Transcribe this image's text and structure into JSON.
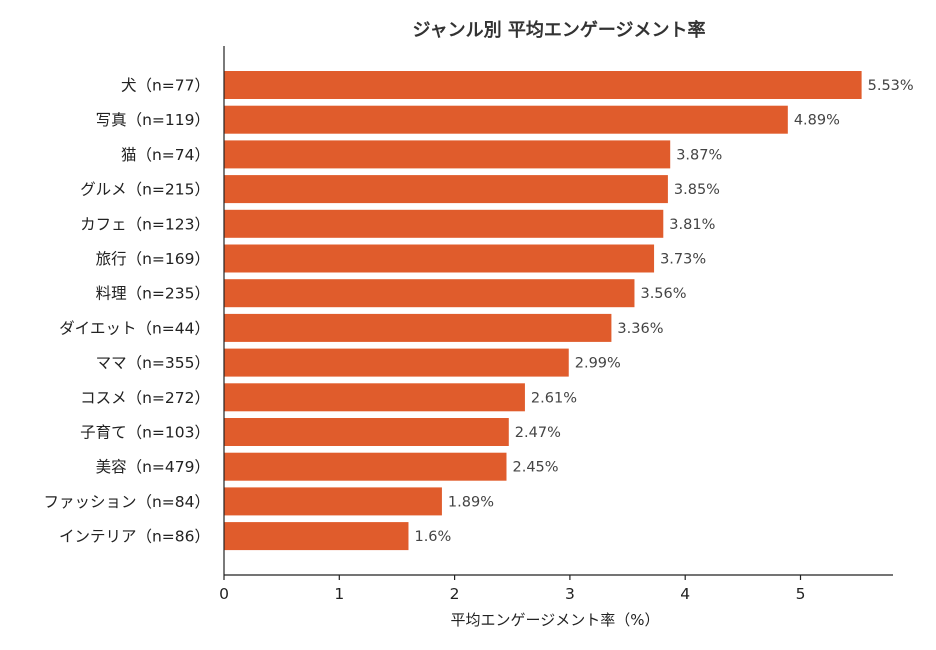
{
  "chart_data": {
    "type": "bar",
    "orientation": "horizontal",
    "title": "ジャンル別 平均エンゲージメント率",
    "xlabel": "平均エンゲージメント率（%）",
    "ylabel": "",
    "xlim": [
      0,
      5.8
    ],
    "xticks": [
      0,
      1,
      2,
      3,
      4,
      5
    ],
    "grid": false,
    "bar_color": "#e05c2c",
    "categories": [
      "犬（n=77）",
      "写真（n=119）",
      "猫（n=74）",
      "グルメ（n=215）",
      "カフェ（n=123）",
      "旅行（n=169）",
      "料理（n=235）",
      "ダイエット（n=44）",
      "ママ（n=355）",
      "コスメ（n=272）",
      "子育て（n=103）",
      "美容（n=479）",
      "ファッション（n=84）",
      "インテリア（n=86）"
    ],
    "values": [
      5.53,
      4.89,
      3.87,
      3.85,
      3.81,
      3.73,
      3.56,
      3.36,
      2.99,
      2.61,
      2.47,
      2.45,
      1.89,
      1.6
    ],
    "data_labels": [
      "5.53%",
      "4.89%",
      "3.87%",
      "3.85%",
      "3.81%",
      "3.73%",
      "3.56%",
      "3.36%",
      "2.99%",
      "2.61%",
      "2.47%",
      "2.45%",
      "1.89%",
      "1.6%"
    ]
  }
}
